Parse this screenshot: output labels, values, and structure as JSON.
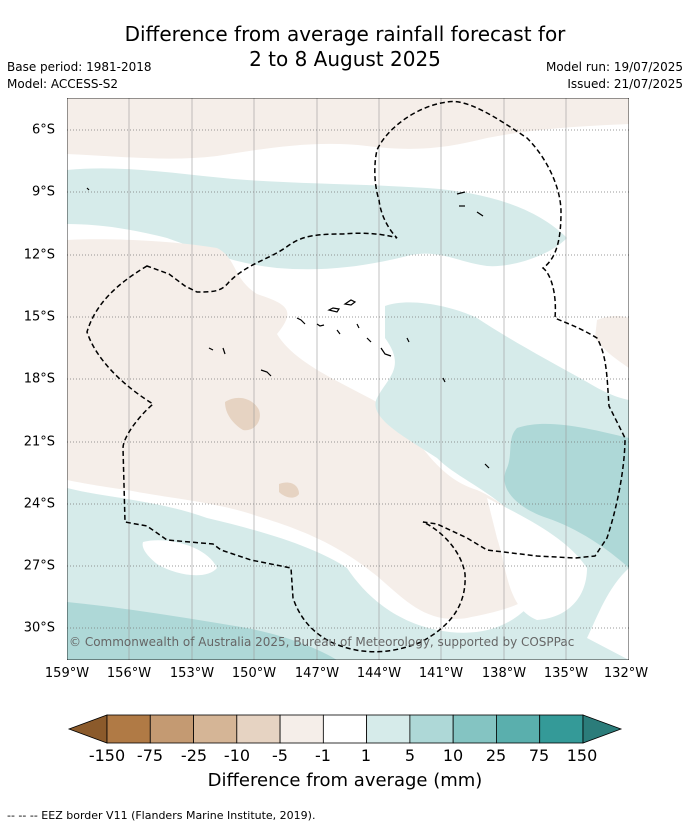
{
  "title_line1": "Difference from average rainfall forecast for",
  "title_line2": "2 to 8 August 2025",
  "base_period": "Base period: 1981-2018",
  "model": "Model: ACCESS-S2",
  "model_run": "Model run: 19/07/2025",
  "issued": "Issued: 21/07/2025",
  "copyright": "© Commonwealth of Australia 2025, Bureau of Meteorology, supported by COSPPac",
  "lat_labels": [
    "6°S",
    "9°S",
    "12°S",
    "15°S",
    "18°S",
    "21°S",
    "24°S",
    "27°S",
    "30°S"
  ],
  "lon_labels": [
    "159°W",
    "156°W",
    "153°W",
    "150°W",
    "147°W",
    "144°W",
    "141°W",
    "138°W",
    "135°W",
    "132°W"
  ],
  "colorbar": {
    "labels": [
      "-150",
      "-75",
      "-25",
      "-10",
      "-5",
      "-1",
      "1",
      "5",
      "10",
      "25",
      "75",
      "150"
    ],
    "colors": [
      "#8b5a2b",
      "#b07a45",
      "#c49a72",
      "#d5b596",
      "#e6d3c2",
      "#f5eee9",
      "#ffffff",
      "#d6ebea",
      "#aed8d7",
      "#84c4c2",
      "#5aafad",
      "#349a98",
      "#2b7c7a"
    ],
    "title": "Difference from average (mm)"
  },
  "eez_note": "--  --  -- EEZ border V11 (Flanders Marine Institute, 2019)."
}
